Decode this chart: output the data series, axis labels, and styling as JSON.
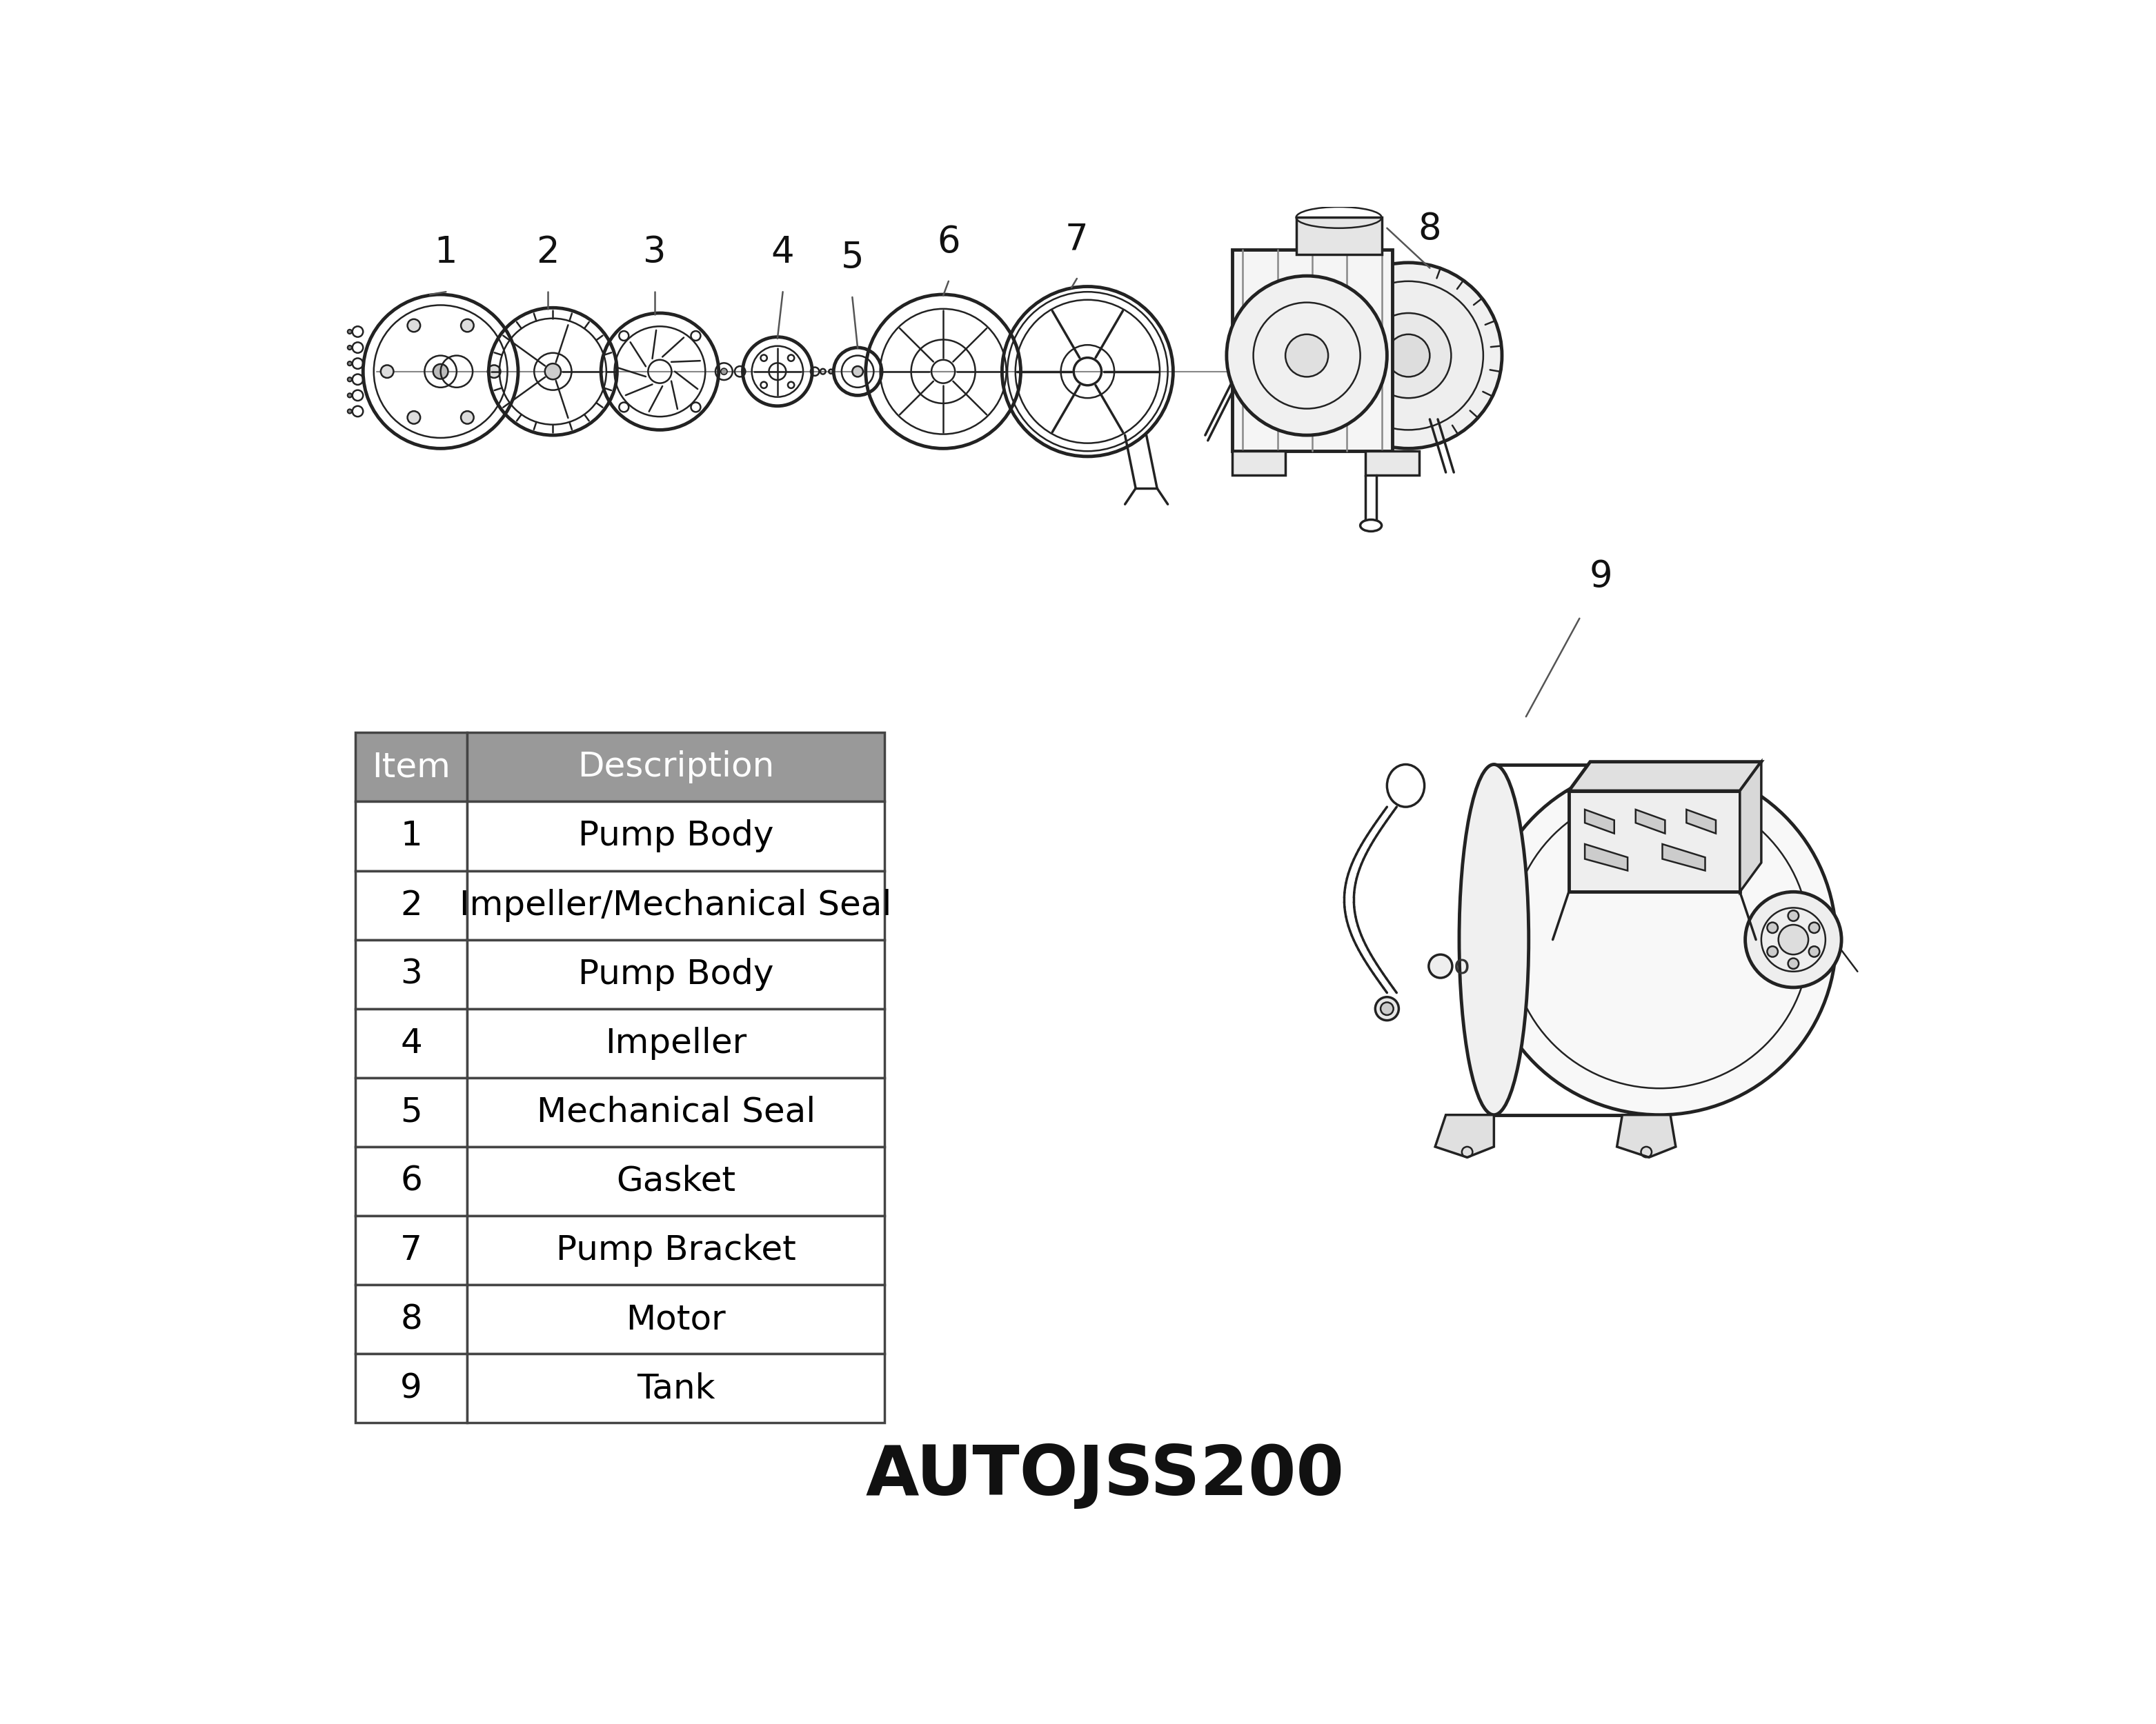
{
  "title": "AUTOJSS200",
  "title_fontsize": 72,
  "title_weight": "bold",
  "bg_color": "#ffffff",
  "table_items": [
    [
      "Item",
      "Description"
    ],
    [
      "1",
      "Pump Body"
    ],
    [
      "2",
      "Impeller/Mechanical Seal"
    ],
    [
      "3",
      "Pump Body"
    ],
    [
      "4",
      "Impeller"
    ],
    [
      "5",
      "Mechanical Seal"
    ],
    [
      "6",
      "Gasket"
    ],
    [
      "7",
      "Pump Bracket"
    ],
    [
      "8",
      "Motor"
    ],
    [
      "9",
      "Tank"
    ]
  ],
  "header_bg": "#999999",
  "header_text_color": "#ffffff",
  "row_bg": "#ffffff",
  "row_text_color": "#000000",
  "table_fontsize": 36,
  "border_color": "#444444",
  "label_fontsize": 38,
  "line_color": "#222222"
}
